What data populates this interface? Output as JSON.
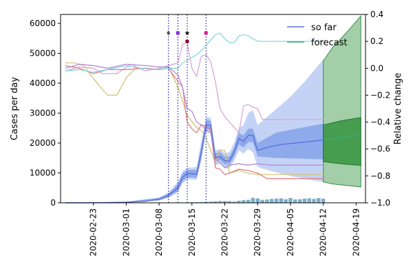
{
  "chart_data": {
    "type": "line",
    "title": "",
    "xlabel": "",
    "ylabel": "Cases per day",
    "y2label": "Relative change",
    "xlim": [
      "2020-02-16",
      "2020-04-21"
    ],
    "ylim": [
      0,
      63000
    ],
    "y2lim": [
      -1.0,
      0.4
    ],
    "x_ticks": [
      "2020-02-23",
      "2020-03-01",
      "2020-03-08",
      "2020-03-15",
      "2020-03-22",
      "2020-03-29",
      "2020-04-05",
      "2020-04-12",
      "2020-04-19"
    ],
    "y_ticks": [
      0,
      10000,
      20000,
      30000,
      40000,
      50000,
      60000
    ],
    "y_tick_labels": [
      "0",
      "10000",
      "20000",
      "30000",
      "40000",
      "50000",
      "60000"
    ],
    "y2_ticks": [
      -1.0,
      -0.8,
      -0.6,
      -0.4,
      -0.2,
      0.0,
      0.2,
      0.4
    ],
    "y2_tick_labels": [
      "−1.0",
      "−0.8",
      "−0.6",
      "−0.4",
      "−0.2",
      "0.0",
      "0.2",
      "0.4"
    ],
    "legend": {
      "position": "top-right",
      "entries": [
        {
          "label": "so far",
          "color": "#5a6ee0"
        },
        {
          "label": "forecast",
          "color": "#3aa872"
        }
      ]
    },
    "intervention_lines": [
      "2020-03-10",
      "2020-03-12",
      "2020-03-14",
      "2020-03-18"
    ],
    "intervention_markers": [
      {
        "x": "2020-03-10",
        "y": 56800,
        "color": "#555555",
        "symbol": "diamond"
      },
      {
        "x": "2020-03-12",
        "y": 56800,
        "color": "#8a2be2",
        "symbol": "square"
      },
      {
        "x": "2020-03-14",
        "y": 56800,
        "color": "#111111",
        "symbol": "star"
      },
      {
        "x": "2020-03-14",
        "y": 54000,
        "color": "#8b0a2a",
        "symbol": "circle"
      },
      {
        "x": "2020-03-18",
        "y": 56800,
        "color": "#e0218a",
        "symbol": "square"
      }
    ],
    "forecast_start": "2020-04-12",
    "fit": {
      "name": "so far",
      "color": "#5a6ee0",
      "points": [
        [
          "2020-02-17",
          0
        ],
        [
          "2020-02-25",
          50
        ],
        [
          "2020-03-01",
          200
        ],
        [
          "2020-03-05",
          500
        ],
        [
          "2020-03-08",
          1200
        ],
        [
          "2020-03-10",
          2500
        ],
        [
          "2020-03-12",
          5000
        ],
        [
          "2020-03-13",
          8500
        ],
        [
          "2020-03-14",
          9800
        ],
        [
          "2020-03-15",
          9800
        ],
        [
          "2020-03-16",
          9500
        ],
        [
          "2020-03-17",
          17000
        ],
        [
          "2020-03-18",
          26000
        ],
        [
          "2020-03-19",
          26000
        ],
        [
          "2020-03-20",
          15000
        ],
        [
          "2020-03-21",
          15500
        ],
        [
          "2020-03-22",
          14000
        ],
        [
          "2020-03-23",
          14000
        ],
        [
          "2020-03-24",
          17000
        ],
        [
          "2020-03-25",
          21500
        ],
        [
          "2020-03-26",
          20500
        ],
        [
          "2020-03-27",
          22500
        ],
        [
          "2020-03-28",
          22500
        ],
        [
          "2020-03-29",
          17500
        ],
        [
          "2020-03-31",
          18500
        ],
        [
          "2020-04-03",
          19500
        ],
        [
          "2020-04-08",
          20300
        ],
        [
          "2020-04-12",
          21000
        ]
      ],
      "band_inner": [
        [
          "2020-02-17",
          0,
          0
        ],
        [
          "2020-03-01",
          100,
          300
        ],
        [
          "2020-03-08",
          900,
          1600
        ],
        [
          "2020-03-10",
          2000,
          3000
        ],
        [
          "2020-03-12",
          4000,
          6200
        ],
        [
          "2020-03-13",
          7200,
          9800
        ],
        [
          "2020-03-14",
          8500,
          11000
        ],
        [
          "2020-03-15",
          8500,
          11000
        ],
        [
          "2020-03-16",
          8300,
          11000
        ],
        [
          "2020-03-17",
          15000,
          19000
        ],
        [
          "2020-03-18",
          24500,
          27500
        ],
        [
          "2020-03-19",
          24500,
          27500
        ],
        [
          "2020-03-20",
          13800,
          16500
        ],
        [
          "2020-03-21",
          14300,
          17000
        ],
        [
          "2020-03-22",
          12800,
          15500
        ],
        [
          "2020-03-23",
          12800,
          15500
        ],
        [
          "2020-03-24",
          15500,
          18500
        ],
        [
          "2020-03-25",
          19500,
          23500
        ],
        [
          "2020-03-26",
          18500,
          22500
        ],
        [
          "2020-03-27",
          20300,
          24800
        ],
        [
          "2020-03-28",
          20300,
          24800
        ],
        [
          "2020-03-29",
          15500,
          20000
        ],
        [
          "2020-04-02",
          15000,
          23500
        ],
        [
          "2020-04-07",
          14800,
          25000
        ],
        [
          "2020-04-12",
          14500,
          26500
        ]
      ],
      "band_outer": [
        [
          "2020-02-17",
          0,
          0
        ],
        [
          "2020-03-01",
          50,
          400
        ],
        [
          "2020-03-08",
          700,
          1800
        ],
        [
          "2020-03-10",
          1600,
          3500
        ],
        [
          "2020-03-12",
          3500,
          7000
        ],
        [
          "2020-03-13",
          6500,
          10500
        ],
        [
          "2020-03-14",
          7800,
          11800
        ],
        [
          "2020-03-15",
          7800,
          11800
        ],
        [
          "2020-03-16",
          7800,
          12000
        ],
        [
          "2020-03-17",
          14000,
          20500
        ],
        [
          "2020-03-18",
          23500,
          28500
        ],
        [
          "2020-03-19",
          23500,
          28500
        ],
        [
          "2020-03-20",
          12500,
          17500
        ],
        [
          "2020-03-21",
          13000,
          18000
        ],
        [
          "2020-03-22",
          11500,
          16500
        ],
        [
          "2020-03-23",
          11500,
          17000
        ],
        [
          "2020-03-24",
          14000,
          20000
        ],
        [
          "2020-03-25",
          17500,
          25000
        ],
        [
          "2020-03-26",
          16500,
          26000
        ],
        [
          "2020-03-27",
          18000,
          30000
        ],
        [
          "2020-03-28",
          17000,
          31000
        ],
        [
          "2020-03-29",
          12000,
          26000
        ],
        [
          "2020-04-01",
          10500,
          30000
        ],
        [
          "2020-04-05",
          9000,
          35500
        ],
        [
          "2020-04-08",
          8000,
          40500
        ],
        [
          "2020-04-12",
          7000,
          48000
        ]
      ]
    },
    "forecast": {
      "name": "forecast",
      "color": "#3aa872",
      "points": [
        [
          "2020-04-12",
          21000
        ],
        [
          "2020-04-16",
          21800
        ],
        [
          "2020-04-20",
          23000
        ]
      ],
      "band_inner": [
        [
          "2020-04-12",
          13800,
          26000
        ],
        [
          "2020-04-16",
          13000,
          27500
        ],
        [
          "2020-04-20",
          12500,
          28500
        ]
      ],
      "band_outer": [
        [
          "2020-04-12",
          7000,
          47500
        ],
        [
          "2020-04-14",
          6300,
          52000
        ],
        [
          "2020-04-17",
          5800,
          57000
        ],
        [
          "2020-04-20",
          5300,
          62500
        ]
      ]
    },
    "bars": {
      "color": "#7faecb",
      "values": [
        [
          "2020-03-15",
          150
        ],
        [
          "2020-03-16",
          200
        ],
        [
          "2020-03-17",
          250
        ],
        [
          "2020-03-18",
          300
        ],
        [
          "2020-03-19",
          400
        ],
        [
          "2020-03-20",
          500
        ],
        [
          "2020-03-21",
          600
        ],
        [
          "2020-03-22",
          600
        ],
        [
          "2020-03-23",
          550
        ],
        [
          "2020-03-24",
          400
        ],
        [
          "2020-03-25",
          700
        ],
        [
          "2020-03-26",
          900
        ],
        [
          "2020-03-27",
          1000
        ],
        [
          "2020-03-28",
          1700
        ],
        [
          "2020-03-29",
          1500
        ],
        [
          "2020-03-30",
          1000
        ],
        [
          "2020-03-31",
          1100
        ],
        [
          "2020-04-01",
          1300
        ],
        [
          "2020-04-02",
          1400
        ],
        [
          "2020-04-03",
          1500
        ],
        [
          "2020-04-04",
          1200
        ],
        [
          "2020-04-05",
          1600
        ],
        [
          "2020-04-06",
          1100
        ],
        [
          "2020-04-07",
          1200
        ],
        [
          "2020-04-08",
          1400
        ],
        [
          "2020-04-09",
          1500
        ],
        [
          "2020-04-10",
          1300
        ],
        [
          "2020-04-11",
          1600
        ],
        [
          "2020-04-12",
          1400
        ]
      ]
    },
    "relative_change_series": [
      {
        "color": "#d8a8d8",
        "points": [
          [
            "2020-02-17",
            -0.02
          ],
          [
            "2020-02-20",
            0.01
          ],
          [
            "2020-02-23",
            0.0
          ],
          [
            "2020-02-25",
            -0.04
          ],
          [
            "2020-02-28",
            -0.04
          ],
          [
            "2020-03-02",
            0.03
          ],
          [
            "2020-03-05",
            -0.02
          ],
          [
            "2020-03-08",
            0.0
          ],
          [
            "2020-03-10",
            0.02
          ],
          [
            "2020-03-12",
            0.04
          ],
          [
            "2020-03-13",
            0.18
          ],
          [
            "2020-03-14",
            0.19
          ],
          [
            "2020-03-15",
            0.0
          ],
          [
            "2020-03-16",
            -0.06
          ],
          [
            "2020-03-17",
            0.09
          ],
          [
            "2020-03-18",
            0.1
          ],
          [
            "2020-03-19",
            0.05
          ],
          [
            "2020-03-20",
            -0.1
          ],
          [
            "2020-03-21",
            -0.3
          ],
          [
            "2020-03-22",
            -0.36
          ],
          [
            "2020-03-24",
            -0.44
          ],
          [
            "2020-03-25",
            -0.48
          ],
          [
            "2020-03-26",
            -0.28
          ],
          [
            "2020-03-27",
            -0.27
          ],
          [
            "2020-03-28",
            -0.29
          ],
          [
            "2020-03-29",
            -0.3
          ],
          [
            "2020-03-30",
            -0.38
          ],
          [
            "2020-04-12",
            -0.38
          ]
        ]
      },
      {
        "color": "#d4c37a",
        "points": [
          [
            "2020-02-17",
            0.04
          ],
          [
            "2020-02-19",
            0.04
          ],
          [
            "2020-02-21",
            0.02
          ],
          [
            "2020-02-22",
            -0.03
          ],
          [
            "2020-02-24",
            -0.12
          ],
          [
            "2020-02-26",
            -0.2
          ],
          [
            "2020-02-28",
            -0.2
          ],
          [
            "2020-03-01",
            -0.07
          ],
          [
            "2020-03-03",
            0.0
          ],
          [
            "2020-03-05",
            0.0
          ],
          [
            "2020-03-08",
            -0.01
          ],
          [
            "2020-03-10",
            0.01
          ],
          [
            "2020-03-12",
            -0.14
          ],
          [
            "2020-03-14",
            -0.35
          ],
          [
            "2020-03-16",
            -0.44
          ],
          [
            "2020-03-17",
            -0.46
          ],
          [
            "2020-03-18",
            -0.52
          ],
          [
            "2020-03-20",
            -0.7
          ],
          [
            "2020-03-21",
            -0.61
          ],
          [
            "2020-03-22",
            -0.61
          ],
          [
            "2020-03-23",
            -0.78
          ],
          [
            "2020-03-25",
            -0.76
          ],
          [
            "2020-03-27",
            -0.78
          ],
          [
            "2020-03-29",
            -0.79
          ],
          [
            "2020-04-12",
            -0.79
          ]
        ]
      },
      {
        "color": "#e08080",
        "points": [
          [
            "2020-02-17",
            0.02
          ],
          [
            "2020-02-20",
            0.0
          ],
          [
            "2020-02-23",
            -0.04
          ],
          [
            "2020-02-26",
            -0.01
          ],
          [
            "2020-03-01",
            -0.01
          ],
          [
            "2020-03-05",
            0.0
          ],
          [
            "2020-03-08",
            -0.01
          ],
          [
            "2020-03-10",
            0.0
          ],
          [
            "2020-03-11",
            -0.05
          ],
          [
            "2020-03-13",
            -0.14
          ],
          [
            "2020-03-14",
            -0.4
          ],
          [
            "2020-03-15",
            -0.45
          ],
          [
            "2020-03-16",
            -0.48
          ],
          [
            "2020-03-17",
            -0.42
          ],
          [
            "2020-03-18",
            -0.43
          ],
          [
            "2020-03-19",
            -0.46
          ],
          [
            "2020-03-20",
            -0.74
          ],
          [
            "2020-03-21",
            -0.75
          ],
          [
            "2020-03-22",
            -0.79
          ],
          [
            "2020-03-23",
            -0.78
          ],
          [
            "2020-03-25",
            -0.75
          ],
          [
            "2020-03-27",
            -0.76
          ],
          [
            "2020-03-29",
            -0.78
          ],
          [
            "2020-03-31",
            -0.82
          ],
          [
            "2020-04-12",
            -0.82
          ]
        ]
      },
      {
        "color": "#7fd8e0",
        "points": [
          [
            "2020-02-17",
            -0.02
          ],
          [
            "2020-02-20",
            -0.01
          ],
          [
            "2020-02-23",
            -0.03
          ],
          [
            "2020-02-26",
            -0.01
          ],
          [
            "2020-03-01",
            0.02
          ],
          [
            "2020-03-04",
            0.0
          ],
          [
            "2020-03-07",
            -0.01
          ],
          [
            "2020-03-10",
            0.0
          ],
          [
            "2020-03-12",
            0.0
          ],
          [
            "2020-03-13",
            0.04
          ],
          [
            "2020-03-14",
            0.06
          ],
          [
            "2020-03-15",
            0.08
          ],
          [
            "2020-03-16",
            0.1
          ],
          [
            "2020-03-17",
            0.13
          ],
          [
            "2020-03-18",
            0.17
          ],
          [
            "2020-03-19",
            0.21
          ],
          [
            "2020-03-20",
            0.25
          ],
          [
            "2020-03-21",
            0.26
          ],
          [
            "2020-03-22",
            0.22
          ],
          [
            "2020-03-23",
            0.19
          ],
          [
            "2020-03-24",
            0.19
          ],
          [
            "2020-03-25",
            0.24
          ],
          [
            "2020-03-26",
            0.25
          ],
          [
            "2020-03-27",
            0.24
          ],
          [
            "2020-03-28",
            0.22
          ],
          [
            "2020-03-29",
            0.2
          ],
          [
            "2020-04-02",
            0.2
          ],
          [
            "2020-04-12",
            0.2
          ]
        ]
      },
      {
        "color": "#b58ad8",
        "points": [
          [
            "2020-02-17",
            0.0
          ],
          [
            "2020-02-20",
            0.03
          ],
          [
            "2020-02-23",
            0.02
          ],
          [
            "2020-02-26",
            0.0
          ],
          [
            "2020-03-01",
            0.03
          ],
          [
            "2020-03-05",
            0.02
          ],
          [
            "2020-03-08",
            0.01
          ],
          [
            "2020-03-10",
            0.01
          ],
          [
            "2020-03-12",
            -0.05
          ],
          [
            "2020-03-13",
            -0.14
          ],
          [
            "2020-03-14",
            -0.3
          ],
          [
            "2020-03-15",
            -0.32
          ],
          [
            "2020-03-16",
            -0.4
          ],
          [
            "2020-03-17",
            -0.42
          ],
          [
            "2020-03-18",
            -0.46
          ],
          [
            "2020-03-19",
            -0.48
          ],
          [
            "2020-03-20",
            -0.68
          ],
          [
            "2020-03-21",
            -0.7
          ],
          [
            "2020-03-22",
            -0.74
          ],
          [
            "2020-03-23",
            -0.72
          ],
          [
            "2020-03-25",
            -0.71
          ],
          [
            "2020-03-27",
            -0.72
          ],
          [
            "2020-03-29",
            -0.71
          ],
          [
            "2020-04-01",
            -0.72
          ],
          [
            "2020-04-12",
            -0.72
          ]
        ]
      }
    ]
  }
}
